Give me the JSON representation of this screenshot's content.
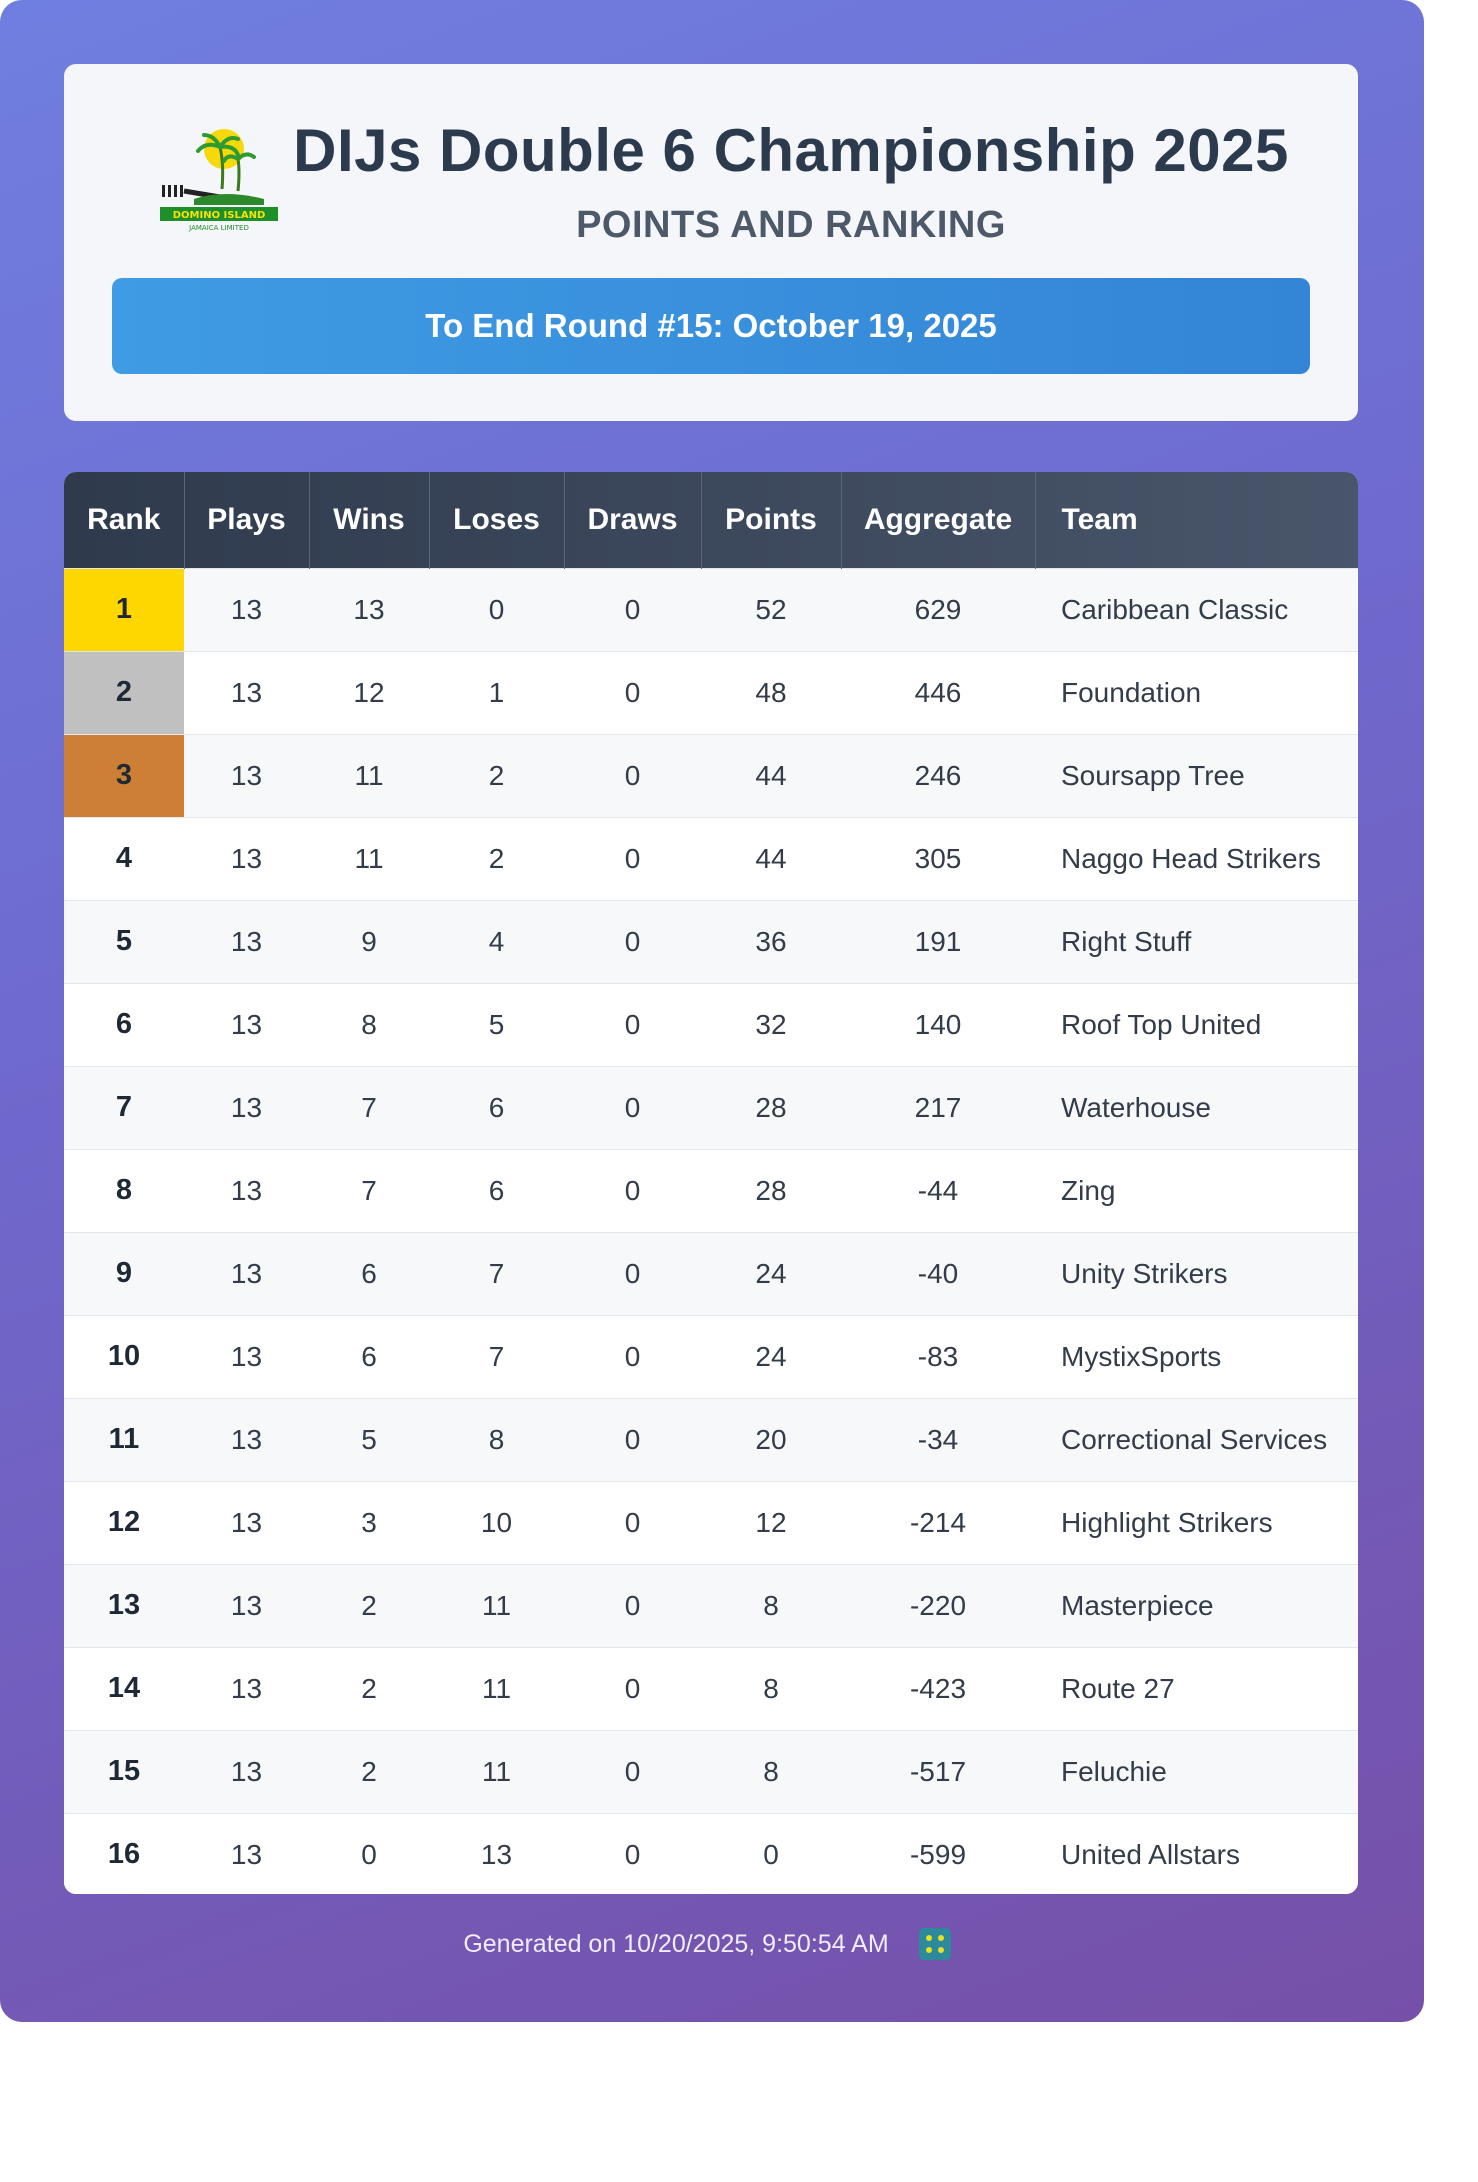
{
  "header": {
    "logo_text": "DOMINO ISLAND JAMAICA LIMITED",
    "title": "DIJs  Double  6 Championship  2025",
    "subtitle": "POINTS AND RANKING",
    "round_banner": "To End Round #15: October 19, 2025"
  },
  "table": {
    "columns": [
      "Rank",
      "Plays",
      "Wins",
      "Loses",
      "Draws",
      "Points",
      "Aggregate",
      "Team"
    ],
    "rows": [
      {
        "rank": "1",
        "plays": "13",
        "wins": "13",
        "loses": "0",
        "draws": "0",
        "points": "52",
        "aggregate": "629",
        "team": "Caribbean Classic"
      },
      {
        "rank": "2",
        "plays": "13",
        "wins": "12",
        "loses": "1",
        "draws": "0",
        "points": "48",
        "aggregate": "446",
        "team": "Foundation"
      },
      {
        "rank": "3",
        "plays": "13",
        "wins": "11",
        "loses": "2",
        "draws": "0",
        "points": "44",
        "aggregate": "246",
        "team": "Soursapp Tree"
      },
      {
        "rank": "4",
        "plays": "13",
        "wins": "11",
        "loses": "2",
        "draws": "0",
        "points": "44",
        "aggregate": "305",
        "team": "Naggo Head Strikers"
      },
      {
        "rank": "5",
        "plays": "13",
        "wins": "9",
        "loses": "4",
        "draws": "0",
        "points": "36",
        "aggregate": "191",
        "team": "Right Stuff"
      },
      {
        "rank": "6",
        "plays": "13",
        "wins": "8",
        "loses": "5",
        "draws": "0",
        "points": "32",
        "aggregate": "140",
        "team": "Roof Top United"
      },
      {
        "rank": "7",
        "plays": "13",
        "wins": "7",
        "loses": "6",
        "draws": "0",
        "points": "28",
        "aggregate": "217",
        "team": "Waterhouse"
      },
      {
        "rank": "8",
        "plays": "13",
        "wins": "7",
        "loses": "6",
        "draws": "0",
        "points": "28",
        "aggregate": "-44",
        "team": "Zing"
      },
      {
        "rank": "9",
        "plays": "13",
        "wins": "6",
        "loses": "7",
        "draws": "0",
        "points": "24",
        "aggregate": "-40",
        "team": "Unity Strikers"
      },
      {
        "rank": "10",
        "plays": "13",
        "wins": "6",
        "loses": "7",
        "draws": "0",
        "points": "24",
        "aggregate": "-83",
        "team": "MystixSports"
      },
      {
        "rank": "11",
        "plays": "13",
        "wins": "5",
        "loses": "8",
        "draws": "0",
        "points": "20",
        "aggregate": "-34",
        "team": "Correctional Services"
      },
      {
        "rank": "12",
        "plays": "13",
        "wins": "3",
        "loses": "10",
        "draws": "0",
        "points": "12",
        "aggregate": "-214",
        "team": "Highlight Strikers"
      },
      {
        "rank": "13",
        "plays": "13",
        "wins": "2",
        "loses": "11",
        "draws": "0",
        "points": "8",
        "aggregate": "-220",
        "team": "Masterpiece"
      },
      {
        "rank": "14",
        "plays": "13",
        "wins": "2",
        "loses": "11",
        "draws": "0",
        "points": "8",
        "aggregate": "-423",
        "team": "Route 27"
      },
      {
        "rank": "15",
        "plays": "13",
        "wins": "2",
        "loses": "11",
        "draws": "0",
        "points": "8",
        "aggregate": "-517",
        "team": "Feluchie"
      },
      {
        "rank": "16",
        "plays": "13",
        "wins": "0",
        "loses": "13",
        "draws": "0",
        "points": "0",
        "aggregate": "-599",
        "team": "United Allstars"
      }
    ]
  },
  "footer": {
    "generated": "Generated on 10/20/2025, 9:50:54 AM"
  },
  "colors": {
    "gold": "#ffd700",
    "silver": "#c0c0c0",
    "bronze": "#cd8035",
    "banner": "#3a90de",
    "header_row": "#2f3a4d"
  }
}
